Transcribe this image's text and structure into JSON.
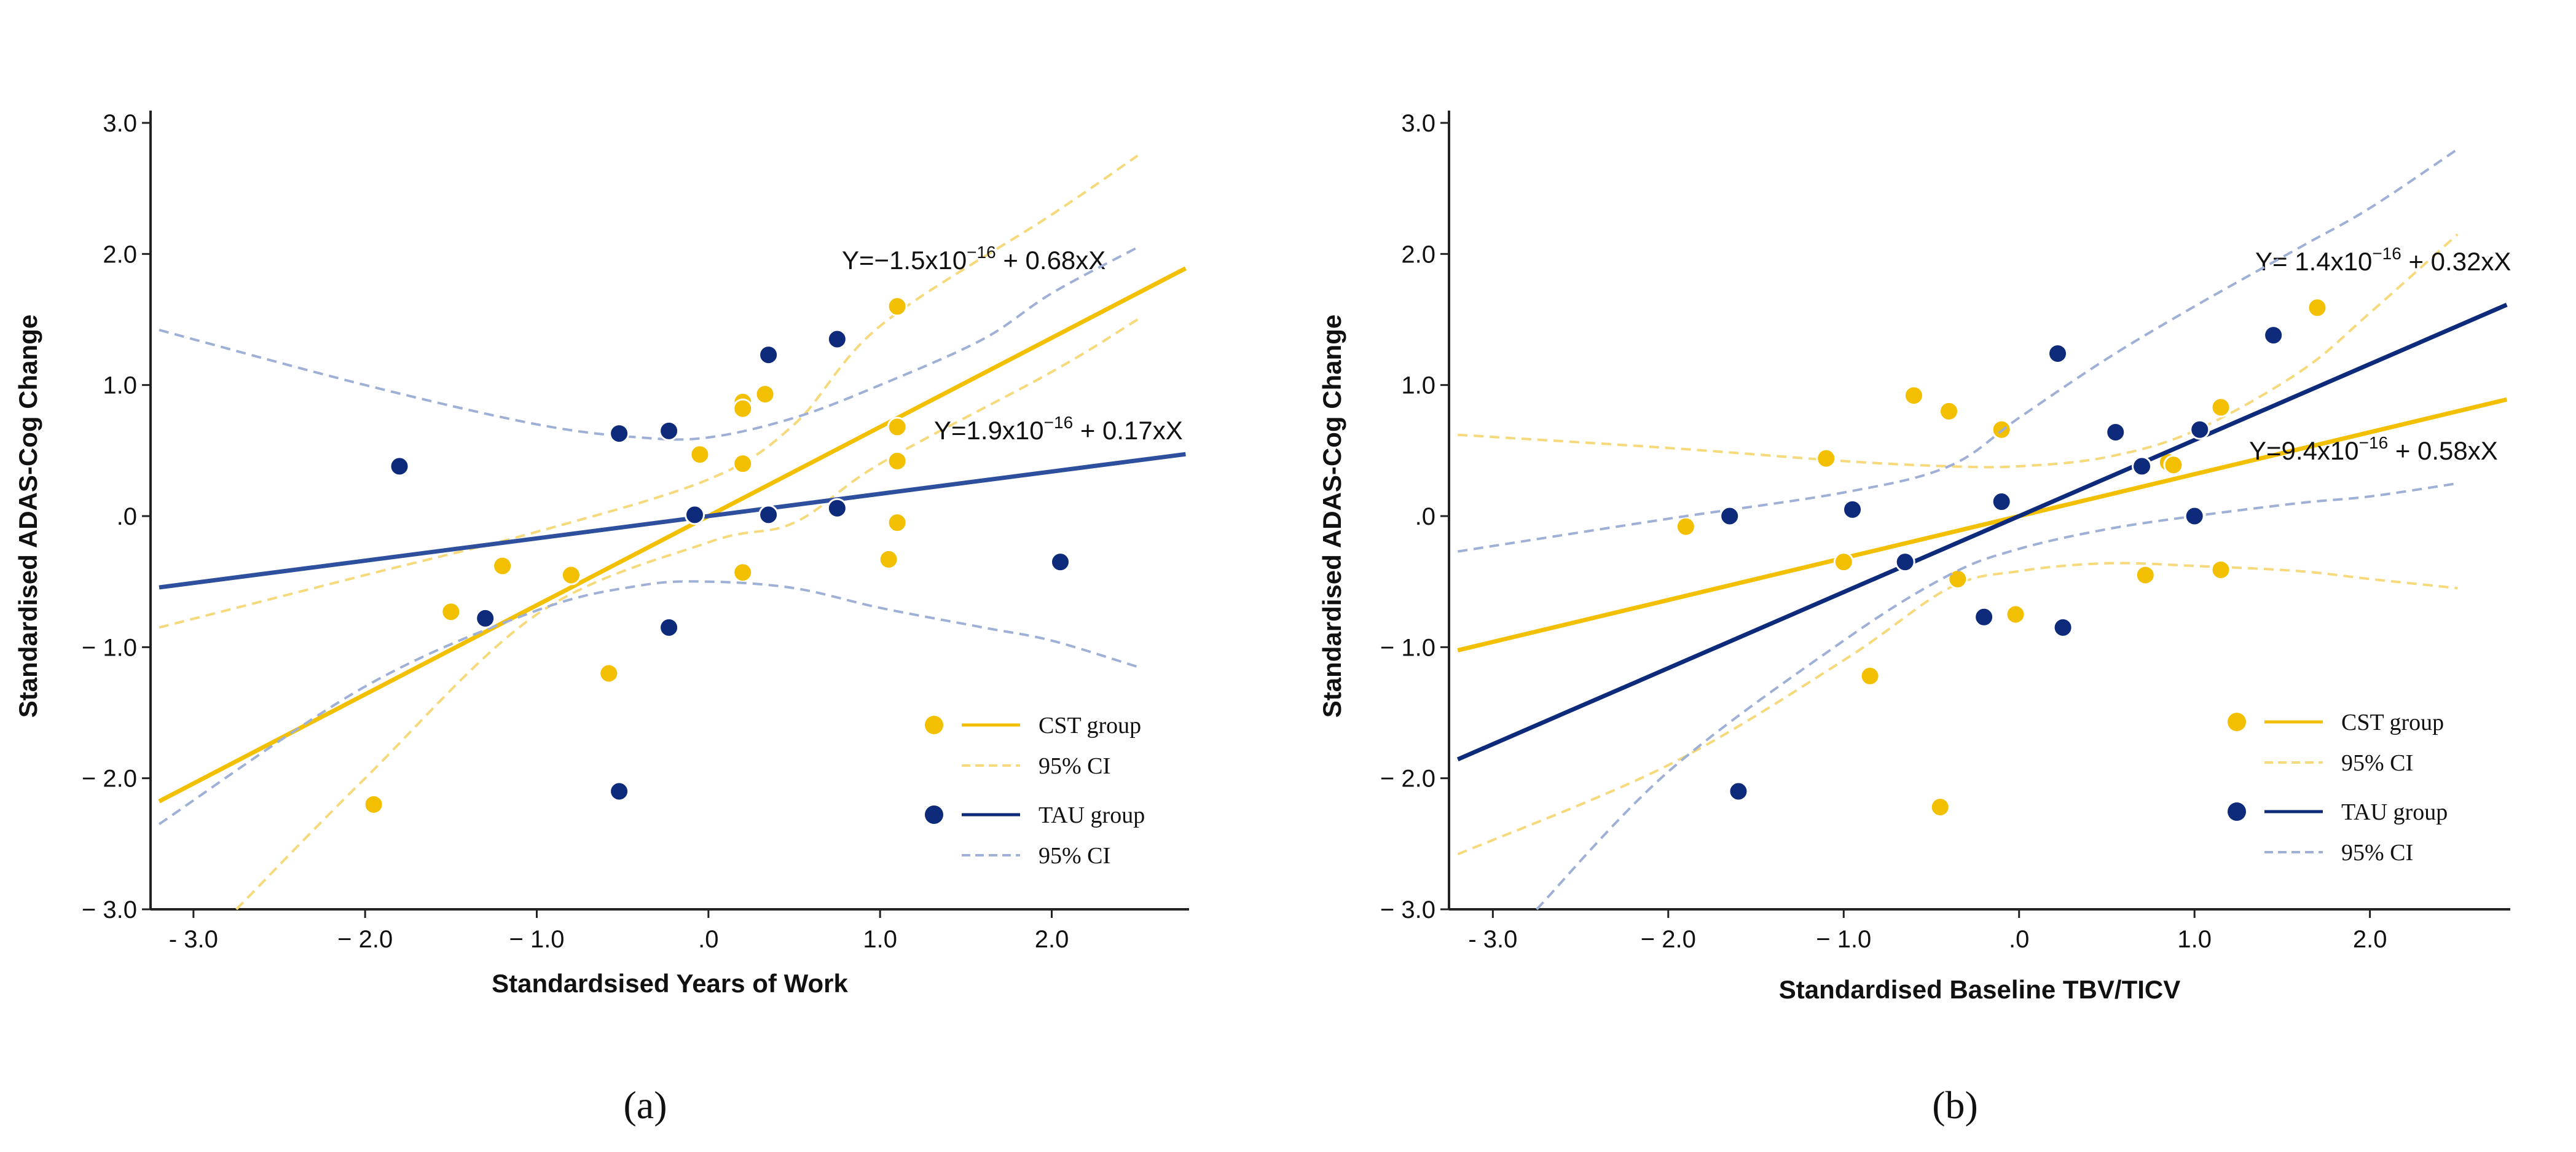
{
  "colors": {
    "cst": "#F2C000",
    "tau": "#0E2A7A",
    "tau_line_a": "#2E4F9E",
    "ci_cst": "#F5D97A",
    "ci_tau": "#9FB0D6",
    "axis": "#222222"
  },
  "legend": {
    "cst": "CST group",
    "cst_ci": "95% CI",
    "tau": "TAU group",
    "tau_ci": "95% CI"
  },
  "chart_data": [
    {
      "type": "scatter",
      "panel_label": "(a)",
      "xlabel": "Standardsised Years of Work",
      "ylabel": "Standardised ADAS-Cog Change",
      "xlim": [
        -3.25,
        2.8
      ],
      "ylim": [
        -3.0,
        3.0
      ],
      "xticks": [
        -3.0,
        -2.0,
        -1.0,
        0.0,
        1.0,
        2.0
      ],
      "xtick_labels": [
        "- 3.0",
        "− 2.0",
        "− 1.0",
        ".0",
        "1.0",
        "2.0"
      ],
      "yticks": [
        3.0,
        2.0,
        1.0,
        0.0,
        -1.0,
        -2.0,
        -3.0
      ],
      "ytick_labels": [
        "3.0",
        "2.0",
        "1.0",
        ".0",
        "− 1.0",
        "− 2.0",
        "− 3.0"
      ],
      "series": [
        {
          "name": "CST group",
          "intercept_text": "Y=−1.5x10",
          "exponent_text": "−16",
          "slope_text": " + 0.68xX",
          "intercept": 0,
          "slope": 0.68,
          "points": [
            [
              -1.95,
              -2.2
            ],
            [
              -1.5,
              -0.73
            ],
            [
              -1.2,
              -0.38
            ],
            [
              -0.8,
              -0.45
            ],
            [
              -0.58,
              -1.2
            ],
            [
              -0.05,
              0.47
            ],
            [
              0.2,
              0.87
            ],
            [
              0.2,
              0.82
            ],
            [
              0.2,
              0.4
            ],
            [
              0.2,
              -0.43
            ],
            [
              0.33,
              0.93
            ],
            [
              1.1,
              1.6
            ],
            [
              1.1,
              0.68
            ],
            [
              1.1,
              0.42
            ],
            [
              1.1,
              -0.05
            ],
            [
              1.05,
              -0.33
            ]
          ],
          "ci": {
            "upper": [
              [
                -3.2,
                -0.85
              ],
              [
                -2.0,
                -0.45
              ],
              [
                -1.0,
                -0.12
              ],
              [
                0.0,
                0.28
              ],
              [
                0.5,
                0.7
              ],
              [
                1.0,
                1.45
              ],
              [
                2.0,
                2.3
              ],
              [
                2.5,
                2.75
              ]
            ],
            "lower": [
              [
                -2.75,
                -3.0
              ],
              [
                -2.0,
                -2.0
              ],
              [
                -1.0,
                -0.75
              ],
              [
                0.0,
                -0.2
              ],
              [
                0.5,
                -0.05
              ],
              [
                1.0,
                0.4
              ],
              [
                2.0,
                1.1
              ],
              [
                2.5,
                1.5
              ]
            ]
          }
        },
        {
          "name": "TAU group",
          "intercept_text": "Y=1.9x10",
          "exponent_text": "−16",
          "slope_text": " + 0.17xX",
          "intercept": 0,
          "slope": 0.17,
          "points": [
            [
              -1.8,
              0.38
            ],
            [
              -1.3,
              -0.78
            ],
            [
              -0.52,
              0.63
            ],
            [
              -0.52,
              -2.1
            ],
            [
              -0.23,
              0.65
            ],
            [
              -0.23,
              -0.85
            ],
            [
              -0.08,
              0.01
            ],
            [
              0.35,
              1.23
            ],
            [
              0.35,
              0.01
            ],
            [
              0.75,
              1.35
            ],
            [
              0.75,
              0.06
            ],
            [
              2.05,
              -0.35
            ]
          ],
          "ci": {
            "upper": [
              [
                -3.2,
                1.42
              ],
              [
                -2.0,
                1.0
              ],
              [
                -1.0,
                0.7
              ],
              [
                -0.4,
                0.6
              ],
              [
                0.0,
                0.6
              ],
              [
                0.5,
                0.75
              ],
              [
                1.0,
                1.0
              ],
              [
                1.6,
                1.35
              ],
              [
                2.0,
                1.7
              ],
              [
                2.5,
                2.05
              ]
            ],
            "lower": [
              [
                -3.2,
                -2.35
              ],
              [
                -2.0,
                -1.3
              ],
              [
                -1.0,
                -0.72
              ],
              [
                -0.4,
                -0.53
              ],
              [
                0.0,
                -0.5
              ],
              [
                0.5,
                -0.55
              ],
              [
                1.0,
                -0.7
              ],
              [
                1.6,
                -0.85
              ],
              [
                2.0,
                -0.95
              ],
              [
                2.5,
                -1.15
              ]
            ]
          }
        }
      ]
    },
    {
      "type": "scatter",
      "panel_label": "(b)",
      "xlabel": "Standardised Baseline TBV/TICV",
      "ylabel": "Standardised ADAS-Cog Change",
      "xlim": [
        -3.25,
        2.8
      ],
      "ylim": [
        -3.0,
        3.0
      ],
      "xticks": [
        -3.0,
        -2.0,
        -1.0,
        0.0,
        1.0,
        2.0
      ],
      "xtick_labels": [
        "- 3.0",
        "− 2.0",
        "− 1.0",
        ".0",
        "1.0",
        "2.0"
      ],
      "yticks": [
        3.0,
        2.0,
        1.0,
        0.0,
        -1.0,
        -2.0,
        -3.0
      ],
      "ytick_labels": [
        "3.0",
        "2.0",
        "1.0",
        ".0",
        "− 1.0",
        "− 2.0",
        "− 3.0"
      ],
      "series": [
        {
          "name": "CST group",
          "intercept_text": "Y= 1.4x10",
          "exponent_text": "−16",
          "slope_text": " + 0.32xX",
          "intercept": 0,
          "slope": 0.32,
          "points": [
            [
              -1.9,
              -0.08
            ],
            [
              -1.1,
              0.44
            ],
            [
              -1.0,
              -0.35
            ],
            [
              -0.85,
              -1.22
            ],
            [
              -0.6,
              0.92
            ],
            [
              -0.45,
              -2.22
            ],
            [
              -0.4,
              0.8
            ],
            [
              -0.35,
              -0.48
            ],
            [
              -0.1,
              0.66
            ],
            [
              -0.02,
              -0.75
            ],
            [
              0.72,
              -0.45
            ],
            [
              0.85,
              0.41
            ],
            [
              0.88,
              0.39
            ],
            [
              1.15,
              0.83
            ],
            [
              1.15,
              -0.41
            ],
            [
              1.7,
              1.59
            ],
            [
              1.45,
              1.38
            ]
          ],
          "ci": {
            "upper": [
              [
                -3.2,
                0.62
              ],
              [
                -2.0,
                0.52
              ],
              [
                -1.0,
                0.42
              ],
              [
                -0.4,
                0.38
              ],
              [
                0.0,
                0.38
              ],
              [
                0.5,
                0.45
              ],
              [
                1.0,
                0.65
              ],
              [
                1.6,
                1.1
              ],
              [
                2.0,
                1.55
              ],
              [
                2.5,
                2.15
              ]
            ],
            "lower": [
              [
                -3.2,
                -2.58
              ],
              [
                -2.0,
                -1.9
              ],
              [
                -1.0,
                -1.1
              ],
              [
                -0.4,
                -0.55
              ],
              [
                0.0,
                -0.42
              ],
              [
                0.5,
                -0.36
              ],
              [
                1.0,
                -0.38
              ],
              [
                1.6,
                -0.42
              ],
              [
                2.0,
                -0.48
              ],
              [
                2.5,
                -0.55
              ]
            ]
          }
        },
        {
          "name": "TAU group",
          "intercept_text": "Y=9.4x10",
          "exponent_text": "−16",
          "slope_text": " + 0.58xX",
          "intercept": 0,
          "slope": 0.58,
          "points": [
            [
              -1.65,
              0.0
            ],
            [
              -1.6,
              -2.1
            ],
            [
              -0.95,
              0.05
            ],
            [
              -0.65,
              -0.35
            ],
            [
              -0.2,
              -0.77
            ],
            [
              -0.1,
              0.11
            ],
            [
              0.22,
              1.24
            ],
            [
              0.25,
              -0.85
            ],
            [
              0.55,
              0.64
            ],
            [
              0.7,
              0.38
            ],
            [
              1.0,
              0.0
            ],
            [
              1.03,
              0.66
            ],
            [
              1.45,
              1.38
            ]
          ],
          "ci": {
            "upper": [
              [
                -3.2,
                -0.27
              ],
              [
                -2.0,
                -0.02
              ],
              [
                -1.0,
                0.18
              ],
              [
                -0.4,
                0.38
              ],
              [
                0.0,
                0.75
              ],
              [
                0.5,
                1.2
              ],
              [
                1.0,
                1.6
              ],
              [
                1.6,
                2.05
              ],
              [
                2.0,
                2.35
              ],
              [
                2.5,
                2.8
              ]
            ],
            "lower": [
              [
                -2.75,
                -3.0
              ],
              [
                -2.0,
                -1.95
              ],
              [
                -1.0,
                -0.95
              ],
              [
                -0.4,
                -0.45
              ],
              [
                0.0,
                -0.25
              ],
              [
                0.5,
                -0.1
              ],
              [
                1.0,
                0.0
              ],
              [
                1.6,
                0.1
              ],
              [
                2.0,
                0.15
              ],
              [
                2.5,
                0.25
              ]
            ]
          }
        }
      ]
    }
  ]
}
